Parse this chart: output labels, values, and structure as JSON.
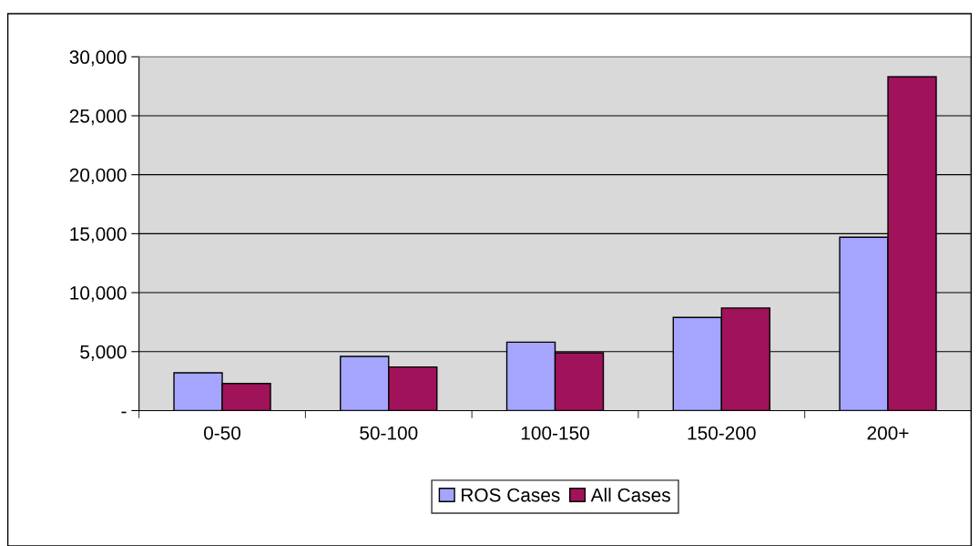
{
  "chart_data": {
    "type": "bar",
    "categories": [
      "0-50",
      "50-100",
      "100-150",
      "150-200",
      "200+"
    ],
    "series": [
      {
        "name": "ROS Cases",
        "color": "#a5a5ff",
        "values": [
          3200,
          4600,
          5800,
          7900,
          14700
        ]
      },
      {
        "name": "All Cases",
        "color": "#a0125a",
        "values": [
          2300,
          3700,
          4900,
          8700,
          28300
        ]
      }
    ],
    "ylim": [
      0,
      30000
    ],
    "yticks": [
      {
        "value": 0,
        "label": "-"
      },
      {
        "value": 5000,
        "label": "5,000"
      },
      {
        "value": 10000,
        "label": "10,000"
      },
      {
        "value": 15000,
        "label": "15,000"
      },
      {
        "value": 20000,
        "label": "20,000"
      },
      {
        "value": 25000,
        "label": "25,000"
      },
      {
        "value": 30000,
        "label": "30,000"
      }
    ],
    "grid": "y",
    "legend": "bottom"
  }
}
